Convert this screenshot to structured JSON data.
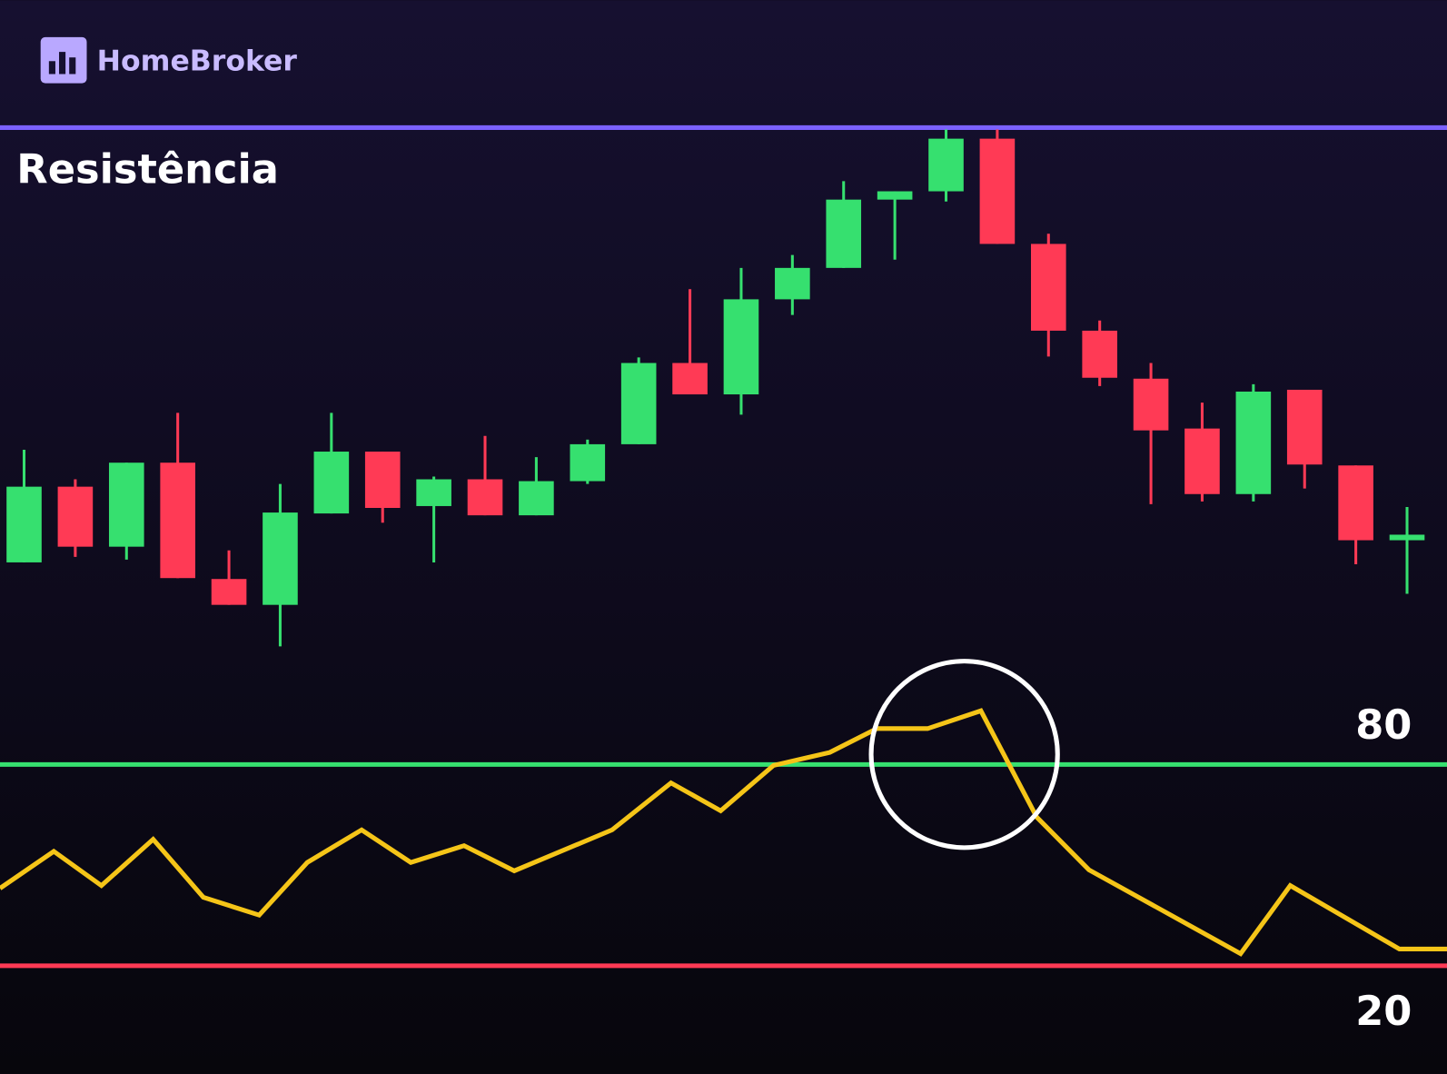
{
  "header": {
    "brand": "HomeBroker"
  },
  "chart_data": [
    {
      "type": "candlestick",
      "annotation": "Resistência",
      "resistance": 112.4,
      "resistance_color": "#7b61ff",
      "up_color": "#36e06f",
      "down_color": "#ff3a55",
      "xlim": [
        -0.47,
        27.78
      ],
      "ylim": [
        0,
        120
      ],
      "open": [
        18.2,
        34.6,
        21.6,
        39.8,
        14.6,
        9,
        28.8,
        42.2,
        30.4,
        36.2,
        28.4,
        35.8,
        43.8,
        61.4,
        54.6,
        75.2,
        82,
        96.8,
        98.6,
        110,
        87.2,
        68.4,
        58,
        47.2,
        33,
        55.6,
        39.2,
        23
      ],
      "close": [
        34.6,
        21.6,
        39.8,
        14.8,
        9,
        29,
        42.2,
        30,
        36.2,
        28.4,
        35.8,
        43.8,
        61.4,
        54.6,
        75.2,
        82,
        96.8,
        98.6,
        110,
        87.2,
        68.4,
        58.2,
        46.8,
        33,
        55.2,
        39.4,
        23,
        24.2
      ],
      "high": [
        42.6,
        36.2,
        39.8,
        50.6,
        20.8,
        35.2,
        50.6,
        42.2,
        36.8,
        45.6,
        41,
        44.8,
        62.6,
        77.4,
        82,
        84.8,
        100.8,
        98.6,
        112,
        112,
        89.4,
        70.6,
        61.4,
        52.8,
        56.8,
        55.6,
        39.2,
        30.2
      ],
      "low": [
        18.2,
        19.4,
        18.8,
        14.8,
        9,
        0,
        28.8,
        26.8,
        18.2,
        28.4,
        28.4,
        35.2,
        43.8,
        54.6,
        50.2,
        71.8,
        82,
        83.8,
        96.4,
        87.2,
        62.8,
        56.4,
        30.8,
        31.4,
        31.4,
        34.2,
        17.8,
        11.4
      ]
    },
    {
      "type": "line",
      "color": "#f5c518",
      "xlim": [
        -0.47,
        27.78
      ],
      "ylim": [
        -12.2,
        115.2
      ],
      "x": [
        -0.47,
        0.58,
        1.51,
        2.52,
        3.5,
        4.59,
        5.53,
        6.59,
        7.55,
        8.59,
        9.57,
        11.48,
        12.63,
        13.6,
        14.63,
        15.73,
        16.65,
        17.64,
        18.68,
        19.77,
        20.79,
        23.75,
        24.72,
        26.85,
        27.78
      ],
      "values": [
        43.1,
        54.1,
        43.9,
        57.7,
        40.4,
        35.1,
        50.8,
        60.5,
        50.8,
        55.8,
        48.3,
        60.5,
        74.5,
        66.2,
        79.7,
        83.6,
        90.7,
        90.7,
        96.0,
        64.3,
        48.6,
        23.6,
        43.9,
        25.0,
        25.0
      ],
      "levels": [
        {
          "value": 80,
          "color": "#36e06f"
        },
        {
          "value": 20,
          "color": "#ff3a55"
        }
      ]
    }
  ]
}
